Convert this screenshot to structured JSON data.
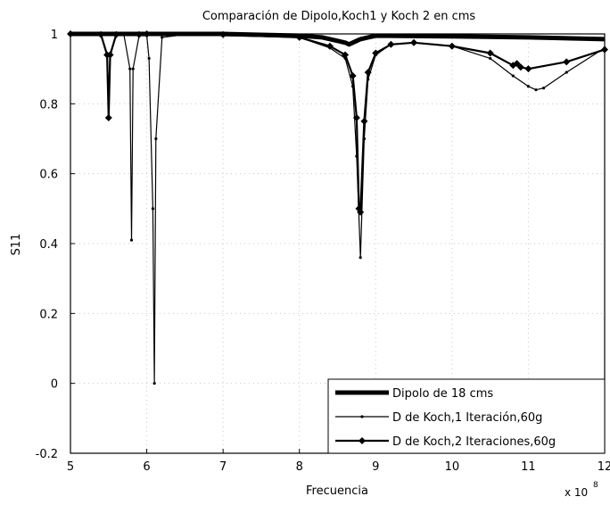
{
  "chart_data": {
    "type": "line",
    "title": "Comparación de Dipolo,Koch1 y Koch 2 en cms",
    "xlabel": "Frecuencia",
    "ylabel": "S11",
    "x_multiplier_label": "x 10",
    "x_multiplier_exponent": "8",
    "xlim": [
      5,
      12
    ],
    "ylim": [
      -0.2,
      1.0
    ],
    "xticks": [
      5,
      6,
      7,
      8,
      9,
      10,
      11,
      12
    ],
    "yticks": [
      1,
      0.8,
      0.6,
      0.4,
      0.2,
      0,
      -0.2
    ],
    "ytick_labels": [
      "1",
      "0.8",
      "0.6",
      "0.4",
      "0.2",
      "0",
      "-0.2"
    ],
    "grid": "dotted",
    "legend_position": "bottom-right",
    "series": [
      {
        "name": "Dipolo de 18 cms",
        "marker": "none",
        "line_weight": "thick",
        "x": [
          5.0,
          6.0,
          7.0,
          8.0,
          8.3,
          8.5,
          8.6,
          8.65,
          8.7,
          8.75,
          8.8,
          8.9,
          9.0,
          10.0,
          11.0,
          12.0
        ],
        "y": [
          1.0,
          1.0,
          1.0,
          0.995,
          0.99,
          0.98,
          0.975,
          0.97,
          0.975,
          0.98,
          0.985,
          0.99,
          0.995,
          0.993,
          0.99,
          0.985
        ]
      },
      {
        "name": "D de Koch,1 Iteración,60g",
        "marker": "dot",
        "line_weight": "thin",
        "x": [
          5.0,
          5.7,
          5.78,
          5.8,
          5.82,
          5.9,
          6.0,
          6.03,
          6.08,
          6.1,
          6.12,
          6.2,
          6.5,
          7.0,
          8.0,
          8.4,
          8.6,
          8.7,
          8.75,
          8.8,
          8.85,
          8.9,
          9.0,
          9.2,
          9.5,
          10.0,
          10.5,
          10.8,
          11.0,
          11.1,
          11.2,
          11.5,
          12.0
        ],
        "y": [
          1.0,
          0.998,
          0.9,
          0.41,
          0.9,
          0.995,
          0.995,
          0.93,
          0.5,
          0.0,
          0.7,
          0.99,
          0.998,
          0.995,
          0.99,
          0.96,
          0.93,
          0.85,
          0.65,
          0.36,
          0.7,
          0.87,
          0.94,
          0.97,
          0.975,
          0.965,
          0.93,
          0.88,
          0.85,
          0.84,
          0.845,
          0.89,
          0.96
        ]
      },
      {
        "name": "D de Koch,2 Iteraciones,60g",
        "marker": "diamond",
        "line_weight": "medium",
        "x": [
          5.0,
          5.4,
          5.48,
          5.5,
          5.52,
          5.6,
          5.9,
          6.0,
          7.0,
          8.0,
          8.4,
          8.6,
          8.7,
          8.75,
          8.78,
          8.8,
          8.85,
          8.9,
          9.0,
          9.2,
          9.5,
          10.0,
          10.5,
          10.8,
          10.85,
          10.9,
          11.0,
          11.5,
          12.0
        ],
        "y": [
          1.0,
          0.998,
          0.94,
          0.76,
          0.94,
          0.998,
          0.998,
          1.0,
          0.998,
          0.99,
          0.965,
          0.94,
          0.88,
          0.76,
          0.5,
          0.49,
          0.75,
          0.89,
          0.945,
          0.97,
          0.975,
          0.965,
          0.945,
          0.91,
          0.915,
          0.905,
          0.9,
          0.92,
          0.955
        ]
      }
    ]
  }
}
